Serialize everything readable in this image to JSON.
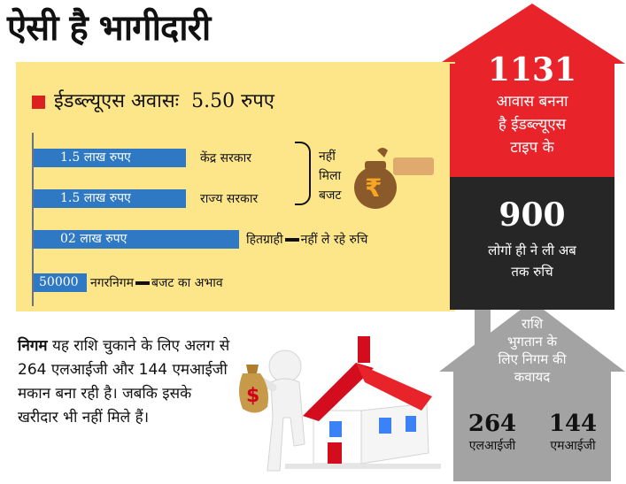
{
  "title": "ऐसी है भागीदारी",
  "header": {
    "label": "ईडब्ल्यूएस अवासः",
    "value": "5.50 रुपए"
  },
  "rows": [
    {
      "amount": "1.5 लाख रुपए",
      "party": "केंद्र सरकार"
    },
    {
      "amount": "1.5 लाख रुपए",
      "party": "राज्य सरकार"
    },
    {
      "amount": "02 लाख रुपए",
      "party": "हितग्राही",
      "note": "नहीं ले रहे रुचि"
    },
    {
      "amount": "50000",
      "party": "नगरनिगम",
      "note": "बजट का अभाव"
    }
  ],
  "brace_note": [
    "नहीं",
    "मिला",
    "बजट"
  ],
  "rupee_symbol": "₹",
  "note": {
    "bold": "निगम",
    "text": " यह राशि चुकाने के लिए अलग से 264 एलआईजी और 144 एमआईजी मकान बना रही है। जबकि इसके खरीदार भी नहीं मिले हैं।"
  },
  "stats": {
    "red": {
      "number": "1131",
      "lines": [
        "आवास बनना",
        "है ईडब्ल्यूएस",
        "टाइप के"
      ]
    },
    "dark": {
      "number": "900",
      "lines": [
        "लोगों ही ने ली अब",
        "तक रुचि"
      ]
    },
    "gray": {
      "lines": [
        "राशि",
        "भुगतान के",
        "लिए निगम की",
        "कवायद"
      ],
      "items": [
        {
          "number": "264",
          "label": "एलआईजी"
        },
        {
          "number": "144",
          "label": "एमआईजी"
        }
      ]
    }
  },
  "colors": {
    "panel": "#fde68a",
    "bar": "#2f78c4",
    "accent_red": "#e8232a",
    "dark": "#262626",
    "gray_house": "#a3a3a3"
  }
}
